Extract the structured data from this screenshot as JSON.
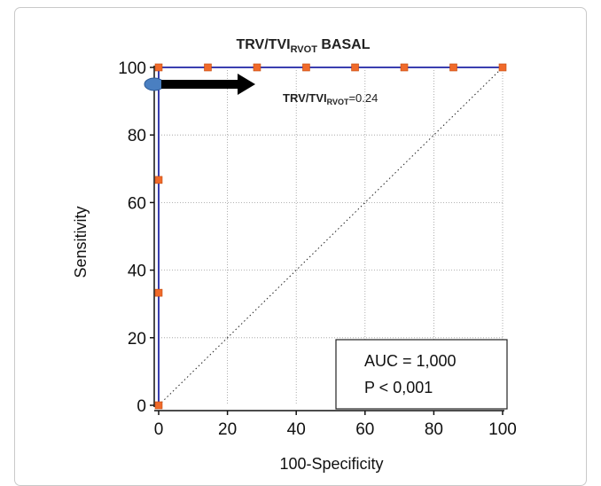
{
  "chart_data": {
    "type": "line",
    "title_main": "TRV/TVI",
    "title_sub": "RVOT",
    "title_rest": " BASAL",
    "xlabel": "100-Specificity",
    "ylabel": "Sensitivity",
    "xlim": [
      0,
      100
    ],
    "ylim": [
      0,
      100
    ],
    "xticks": [
      0,
      20,
      40,
      60,
      80,
      100
    ],
    "yticks": [
      0,
      20,
      40,
      60,
      80,
      100
    ],
    "grid": true,
    "series": [
      {
        "color": "#3b3fb0",
        "marker_color": "#f06a2a",
        "x": [
          0,
          0,
          0,
          0,
          14.3,
          28.6,
          42.9,
          57.1,
          71.4,
          85.7,
          100
        ],
        "y": [
          0,
          33.3,
          66.7,
          100,
          100,
          100,
          100,
          100,
          100,
          100,
          100
        ]
      }
    ],
    "reference_line": {
      "x": [
        0,
        100
      ],
      "y": [
        0,
        100
      ],
      "style": "dotted"
    },
    "cutoff_point": {
      "x": 0,
      "y": 95,
      "color": "#4a7fc1"
    },
    "annotation": {
      "label_main": "TRV/TVI",
      "label_sub": "RVOT",
      "label_value": "=0.24"
    },
    "stats_box": {
      "line1": "AUC = 1,000",
      "line2": "P < 0,001"
    }
  }
}
